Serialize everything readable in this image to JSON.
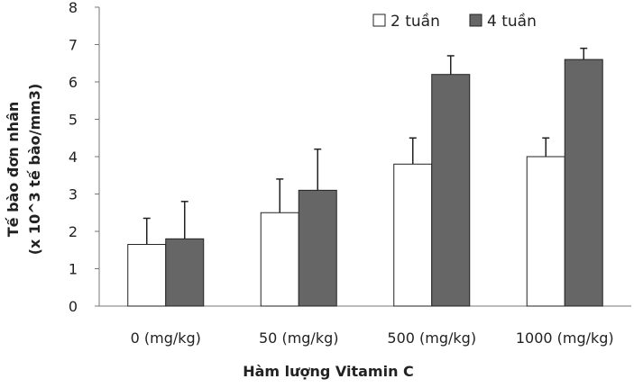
{
  "chart_data": {
    "type": "bar",
    "categories": [
      "0 (mg/kg)",
      "50 (mg/kg)",
      "500 (mg/kg)",
      "1000 (mg/kg)"
    ],
    "series": [
      {
        "name": "2 tuần",
        "values": [
          1.65,
          2.5,
          3.8,
          4.0
        ],
        "errors": [
          0.7,
          0.9,
          0.7,
          0.5
        ],
        "color": "#ffffff"
      },
      {
        "name": "4 tuần",
        "values": [
          1.8,
          3.1,
          6.2,
          6.6
        ],
        "errors": [
          1.0,
          1.1,
          0.5,
          0.3
        ],
        "color": "#666666"
      }
    ],
    "xlabel": "Hàm lượng Vitamin C",
    "ylabel_line1": "Tế bào đơn nhân",
    "ylabel_line2": "(x 10^3 tế bào/mm3)",
    "ylim": [
      0,
      8
    ],
    "yticks": [
      0,
      1,
      2,
      3,
      4,
      5,
      6,
      7,
      8
    ],
    "grid": false,
    "legend_position": "top-right"
  }
}
